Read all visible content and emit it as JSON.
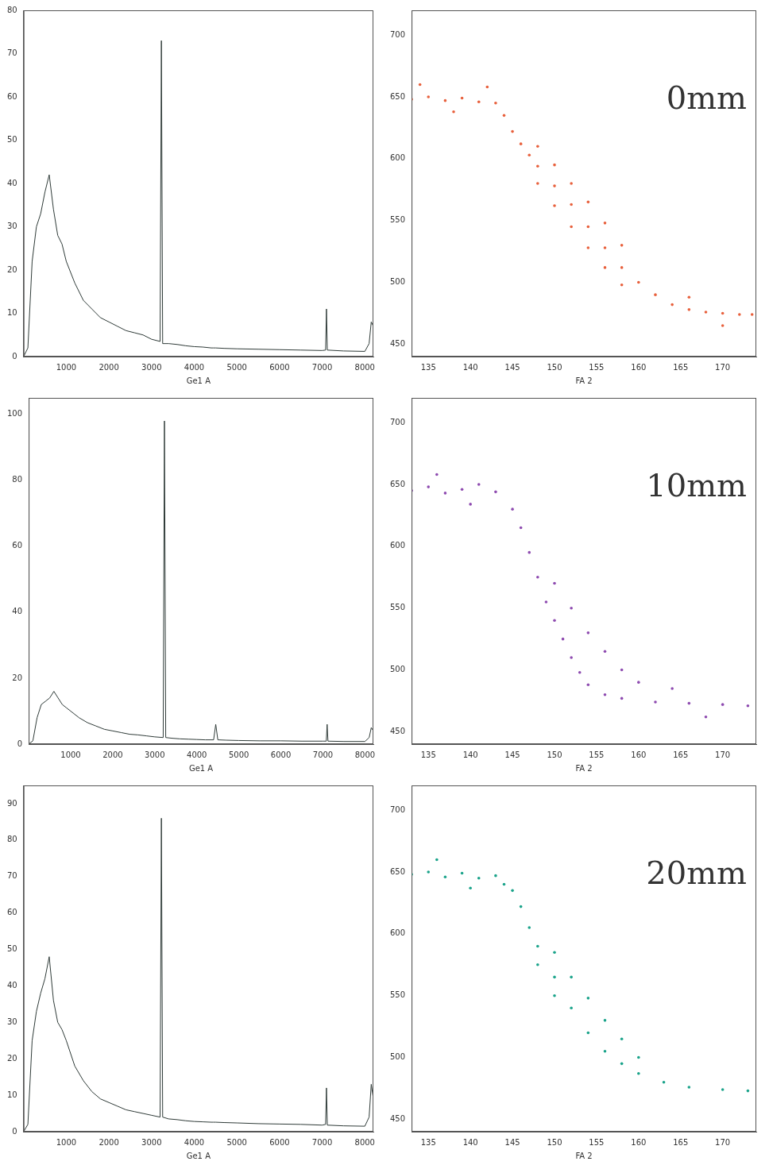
{
  "chart_data": [
    {
      "type": "line",
      "x_label": "Ge1 A",
      "color": "#2f3b38",
      "grid": false,
      "xlim": [
        0,
        8200
      ],
      "xticks": [
        1000,
        2000,
        3000,
        4000,
        5000,
        6000,
        7000,
        8000
      ],
      "ylim": [
        0,
        80
      ],
      "yticks": [
        0,
        10,
        20,
        30,
        40,
        50,
        60,
        70,
        80
      ],
      "x": [
        0,
        100,
        200,
        300,
        400,
        500,
        600,
        700,
        800,
        900,
        1000,
        1200,
        1400,
        1600,
        1800,
        2000,
        2200,
        2400,
        2600,
        2800,
        3000,
        3200,
        3230,
        3260,
        3400,
        3600,
        3800,
        4000,
        4200,
        4400,
        4450,
        4500,
        4700,
        5000,
        5500,
        6000,
        6500,
        7000,
        7080,
        7100,
        7120,
        7500,
        8000,
        8100,
        8150,
        8200
      ],
      "values": [
        0,
        2,
        22,
        30,
        33,
        38,
        42,
        34,
        28,
        26,
        22,
        17,
        13,
        11,
        9,
        8,
        7,
        6,
        5.5,
        5,
        4,
        3.5,
        73,
        3,
        3,
        2.8,
        2.5,
        2.3,
        2.2,
        2,
        2,
        2,
        1.9,
        1.8,
        1.7,
        1.6,
        1.5,
        1.4,
        1.5,
        11,
        1.5,
        1.3,
        1.2,
        3,
        8,
        7
      ]
    },
    {
      "type": "scatter",
      "x_label": "FA 2",
      "annotation": "0mm",
      "color": "#e8603c",
      "marker": "circle",
      "grid": false,
      "xlim": [
        133,
        174
      ],
      "xticks": [
        135,
        140,
        145,
        150,
        155,
        160,
        165,
        170
      ],
      "ylim": [
        440,
        720
      ],
      "yticks": [
        450,
        500,
        550,
        600,
        650,
        700
      ],
      "x": [
        133,
        135,
        137,
        139,
        141,
        143,
        134,
        138,
        142,
        144,
        145,
        146,
        147,
        148,
        150,
        152,
        154,
        156,
        158,
        160,
        162,
        164,
        166,
        168,
        170,
        172,
        173.5,
        148,
        150,
        152,
        154,
        156,
        158,
        148,
        150,
        152,
        154,
        156,
        158,
        166,
        170
      ],
      "values": [
        648,
        650,
        647,
        649,
        646,
        645,
        660,
        638,
        658,
        635,
        622,
        612,
        603,
        594,
        578,
        563,
        545,
        528,
        512,
        500,
        490,
        482,
        478,
        476,
        475,
        474,
        474,
        610,
        595,
        580,
        565,
        548,
        530,
        580,
        562,
        545,
        528,
        512,
        498,
        488,
        465
      ]
    },
    {
      "type": "line",
      "x_label": "Ge1 A",
      "color": "#2f3b38",
      "grid": false,
      "xlim": [
        0,
        8200
      ],
      "xticks": [
        1000,
        2000,
        3000,
        4000,
        5000,
        6000,
        7000,
        8000
      ],
      "ylim": [
        0,
        105
      ],
      "yticks": [
        0,
        20,
        40,
        60,
        80,
        100
      ],
      "x": [
        0,
        100,
        200,
        300,
        400,
        500,
        600,
        700,
        800,
        900,
        1000,
        1200,
        1400,
        1600,
        1800,
        2000,
        2200,
        2400,
        2600,
        2800,
        3000,
        3200,
        3230,
        3260,
        3400,
        3600,
        3800,
        4000,
        4200,
        4400,
        4450,
        4500,
        4700,
        5000,
        5500,
        6000,
        6500,
        7000,
        7080,
        7100,
        7120,
        7500,
        8000,
        8100,
        8150,
        8200
      ],
      "values": [
        0,
        1,
        8,
        12,
        13,
        14,
        16,
        14,
        12,
        11,
        10,
        8,
        6.5,
        5.5,
        4.5,
        4,
        3.5,
        3,
        2.8,
        2.5,
        2.2,
        2,
        98,
        2,
        1.8,
        1.6,
        1.5,
        1.4,
        1.3,
        1.3,
        6,
        1.3,
        1.2,
        1.1,
        1,
        1,
        0.9,
        0.9,
        0.9,
        6,
        0.9,
        0.8,
        0.8,
        2,
        5,
        4
      ]
    },
    {
      "type": "scatter",
      "x_label": "FA 2",
      "annotation": "10mm",
      "color": "#8e4bb0",
      "marker": "circle",
      "grid": false,
      "xlim": [
        133,
        174
      ],
      "xticks": [
        135,
        140,
        145,
        150,
        155,
        160,
        165,
        170
      ],
      "ylim": [
        440,
        720
      ],
      "yticks": [
        450,
        500,
        550,
        600,
        650,
        700
      ],
      "x": [
        133,
        135,
        137,
        139,
        141,
        143,
        136,
        140,
        145,
        146,
        147,
        148,
        149,
        150,
        151,
        152,
        153,
        154,
        156,
        158,
        162,
        166,
        170,
        173,
        150,
        152,
        154,
        156,
        158,
        160,
        164,
        168
      ],
      "values": [
        645,
        648,
        643,
        646,
        650,
        644,
        658,
        634,
        630,
        615,
        595,
        575,
        555,
        540,
        525,
        510,
        498,
        488,
        480,
        477,
        474,
        473,
        472,
        471,
        570,
        550,
        530,
        515,
        500,
        490,
        485,
        462
      ]
    },
    {
      "type": "line",
      "x_label": "Ge1 A",
      "color": "#2f3b38",
      "grid": false,
      "xlim": [
        0,
        8200
      ],
      "xticks": [
        1000,
        2000,
        3000,
        4000,
        5000,
        6000,
        7000,
        8000
      ],
      "ylim": [
        0,
        95
      ],
      "yticks": [
        0,
        10,
        20,
        30,
        40,
        50,
        60,
        70,
        80,
        90
      ],
      "x": [
        0,
        100,
        200,
        300,
        400,
        500,
        600,
        700,
        800,
        900,
        1000,
        1200,
        1400,
        1600,
        1800,
        2000,
        2200,
        2400,
        2600,
        2800,
        3000,
        3200,
        3230,
        3260,
        3400,
        3600,
        3800,
        4000,
        4200,
        4400,
        4450,
        4500,
        4700,
        5000,
        5500,
        6000,
        6500,
        7000,
        7080,
        7100,
        7120,
        7500,
        8000,
        8100,
        8150,
        8200
      ],
      "values": [
        0,
        2,
        25,
        33,
        38,
        42,
        48,
        36,
        30,
        28,
        25,
        18,
        14,
        11,
        9,
        8,
        7,
        6,
        5.5,
        5,
        4.5,
        4,
        86,
        4,
        3.5,
        3.3,
        3,
        2.8,
        2.7,
        2.6,
        2.6,
        2.6,
        2.5,
        2.4,
        2.2,
        2.1,
        2,
        1.8,
        2,
        12,
        1.8,
        1.6,
        1.5,
        4,
        13,
        9
      ]
    },
    {
      "type": "scatter",
      "x_label": "FA 2",
      "annotation": "20mm",
      "color": "#1aa38a",
      "marker": "circle",
      "grid": false,
      "xlim": [
        133,
        174
      ],
      "xticks": [
        135,
        140,
        145,
        150,
        155,
        160,
        165,
        170
      ],
      "ylim": [
        440,
        720
      ],
      "yticks": [
        450,
        500,
        550,
        600,
        650,
        700
      ],
      "x": [
        133,
        135,
        137,
        139,
        141,
        143,
        136,
        140,
        144,
        145,
        146,
        147,
        148,
        150,
        152,
        154,
        156,
        158,
        160,
        163,
        166,
        170,
        173,
        148,
        150,
        150,
        152,
        154,
        156,
        158,
        160
      ],
      "values": [
        648,
        650,
        646,
        649,
        645,
        647,
        660,
        637,
        640,
        635,
        622,
        605,
        590,
        565,
        540,
        520,
        505,
        495,
        487,
        480,
        476,
        474,
        473,
        575,
        585,
        550,
        565,
        548,
        530,
        515,
        500
      ]
    }
  ]
}
